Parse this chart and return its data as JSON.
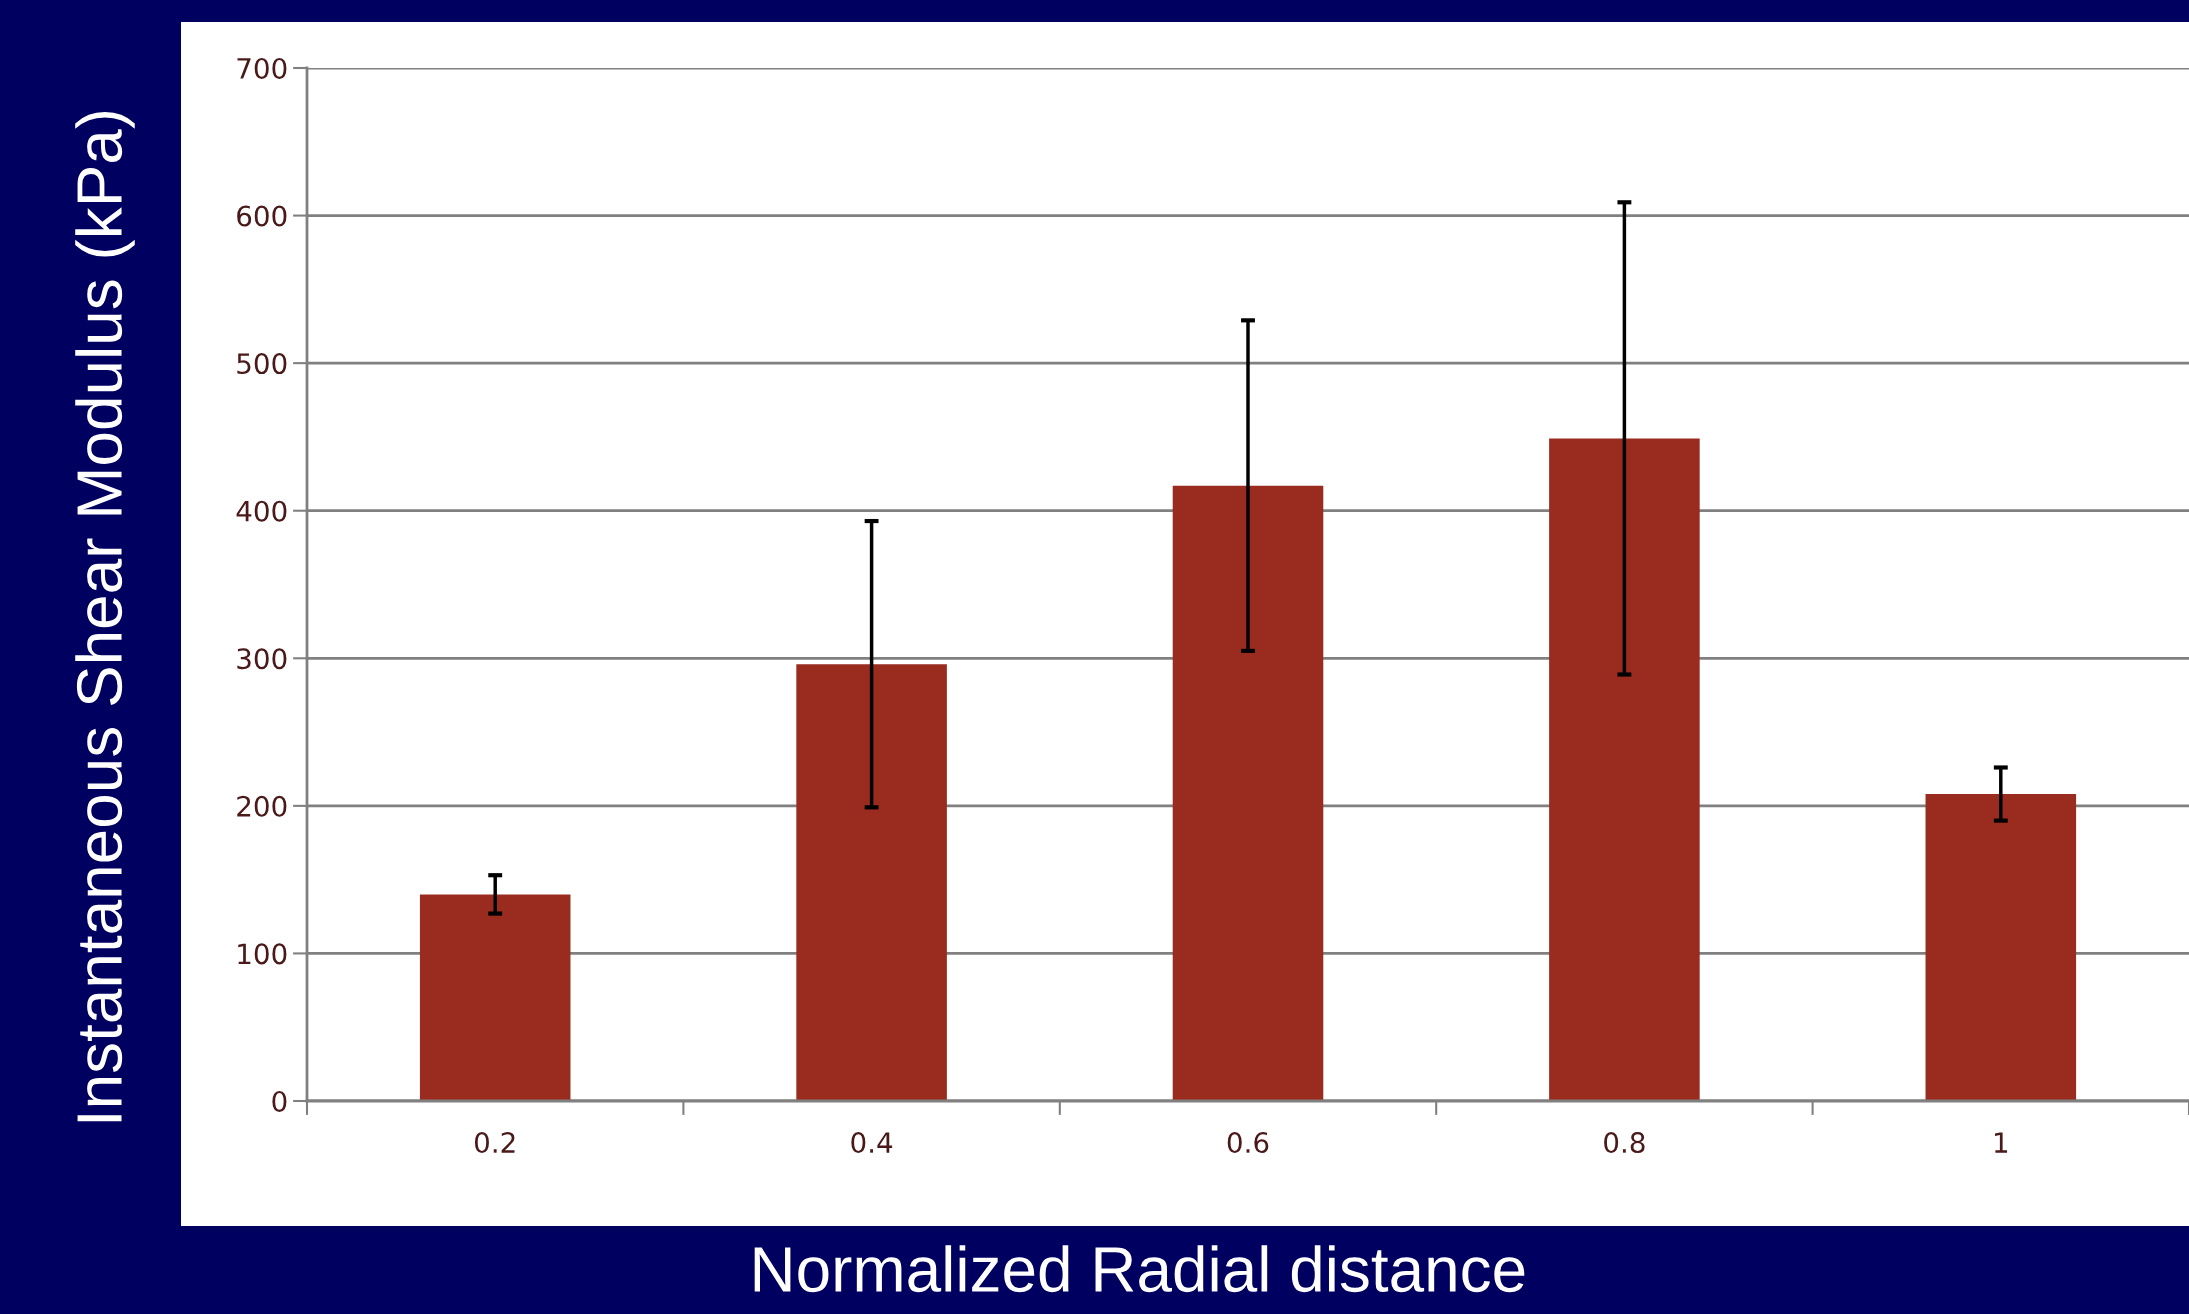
{
  "chart_data": {
    "type": "bar",
    "xlabel": "Normalized Radial distance",
    "ylabel": "Instantaneous Shear Modulus (kPa)",
    "categories": [
      "0.2",
      "0.4",
      "0.6",
      "0.8",
      "1"
    ],
    "values": [
      140,
      296,
      417,
      449,
      208
    ],
    "errors": [
      13,
      97,
      112,
      160,
      18
    ],
    "color": "#992b1f",
    "ylim": [
      0,
      700
    ],
    "yticks": [
      0,
      100,
      200,
      300,
      400,
      500,
      600,
      700
    ],
    "grid": "y"
  }
}
